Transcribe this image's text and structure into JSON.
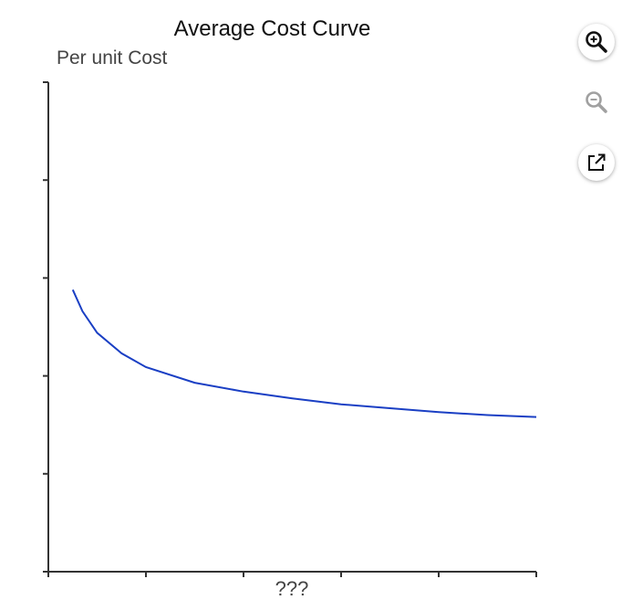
{
  "chart_data": {
    "type": "line",
    "title": "Average Cost Curve",
    "ylabel": "Per unit Cost",
    "xlabel": "???",
    "xlim": [
      0,
      5
    ],
    "ylim": [
      0,
      5
    ],
    "x_ticks": [
      0,
      1,
      2,
      3,
      4,
      5
    ],
    "y_ticks": [
      0,
      1,
      2,
      3,
      4,
      5
    ],
    "tick_labels_shown": false,
    "series": [
      {
        "color": "#1a3fc4",
        "x": [
          0.25,
          0.35,
          0.5,
          0.75,
          1.0,
          1.5,
          2.0,
          2.5,
          3.0,
          3.5,
          4.0,
          4.5,
          5.0
        ],
        "y": [
          2.88,
          2.66,
          2.44,
          2.23,
          2.09,
          1.93,
          1.84,
          1.77,
          1.71,
          1.67,
          1.63,
          1.6,
          1.58
        ]
      }
    ]
  },
  "toolbar": {
    "zoom_in": {
      "icon": "zoom-in-icon",
      "enabled": true
    },
    "zoom_out": {
      "icon": "zoom-out-icon",
      "enabled": false
    },
    "open_external": {
      "icon": "external-link-icon",
      "enabled": true
    }
  }
}
